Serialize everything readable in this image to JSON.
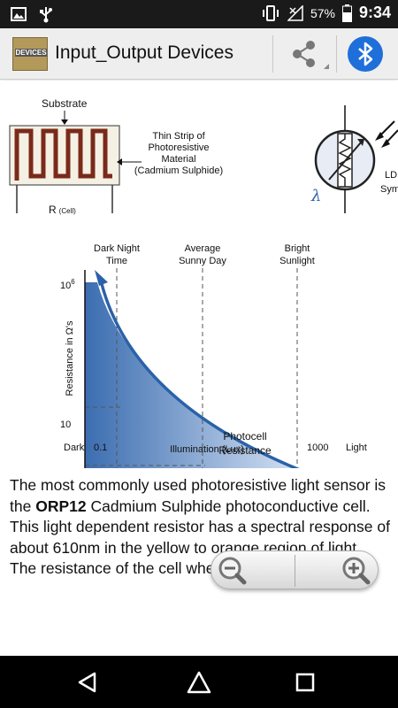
{
  "status_bar": {
    "left_icons": [
      "image-icon",
      "usb-icon"
    ],
    "right_icons": [
      "vibrate-icon",
      "no-signal-icon",
      "battery-icon"
    ],
    "battery": "57%",
    "time": "9:34"
  },
  "app_bar": {
    "title": "Input_Output Devices",
    "app_icon_text": "DEVICES",
    "share_icon": "share-icon",
    "bluetooth_icon": "bluetooth-icon"
  },
  "diagram": {
    "substrate_label": "Substrate",
    "strip_label": [
      "Thin Strip of",
      "Photoresistive",
      "Material",
      "(Cadmium Sulphide)"
    ],
    "r_label": "R",
    "r_sub": "(Cell)",
    "ldr_label": [
      "LD",
      "Sym"
    ],
    "lambda": "λ"
  },
  "chart": {
    "top_labels": [
      [
        "Dark Night",
        "Time"
      ],
      [
        "Average",
        "Sunny Day"
      ],
      [
        "Bright",
        "Sunlight"
      ]
    ],
    "ylabel": "Resistance in Ω's",
    "y_top": "10",
    "y_top_exp": "6",
    "y_bottom": "10",
    "x_dark": "Dark",
    "x_min": "0.1",
    "xlabel": "Illumination (Lux)",
    "x_max": "1000",
    "x_light": "Light",
    "curve_label": [
      "Photocell",
      "Resistance"
    ]
  },
  "paragraph": {
    "part1": "The most commonly used photoresistive light sensor is the ",
    "bold": "ORP12",
    "part2": " Cadmium Sulphide photoconductive cell. This light dependent resistor has a spectral response of about 610nm in the yellow to orange region of light. The resistance of the cell when unilluminated"
  },
  "zoom": {
    "zoom_out_icon": "zoom-out-icon",
    "zoom_in_icon": "zoom-in-icon"
  },
  "nav_bar": {
    "back_icon": "back-triangle-icon",
    "home_icon": "home-icon",
    "recents_icon": "recents-square-icon"
  },
  "colors": {
    "accent_blue": "#2a62a8",
    "bluetooth": "#1e6fd9",
    "resistor_brown": "#7a2a1a"
  }
}
